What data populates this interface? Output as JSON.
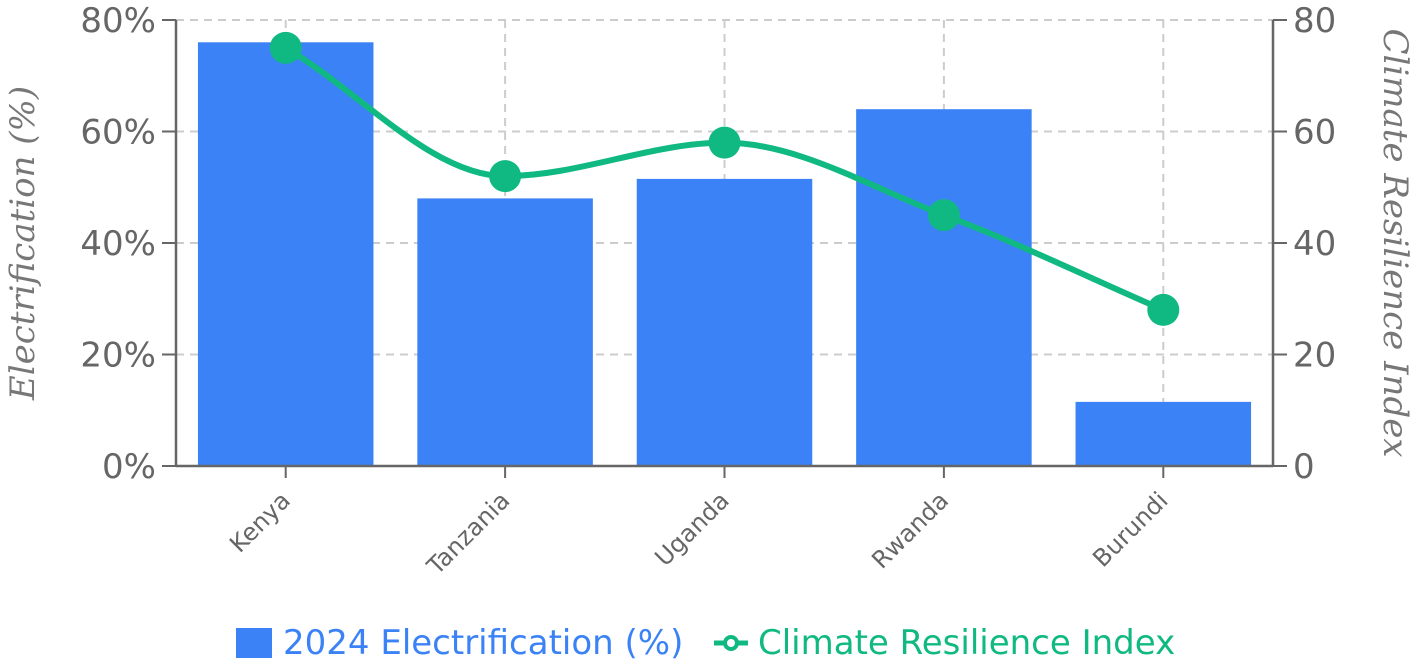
{
  "chart_data": {
    "type": "bar",
    "categories": [
      "Kenya",
      "Tanzania",
      "Uganda",
      "Rwanda",
      "Burundi"
    ],
    "series": [
      {
        "name": "2024 Electrification (%)",
        "type": "bar",
        "axis": "left",
        "color": "#3b82f6",
        "values": [
          76,
          48,
          51.5,
          64,
          11.5
        ]
      },
      {
        "name": "Climate Resilience Index",
        "type": "line",
        "axis": "right",
        "color": "#10b981",
        "smooth": true,
        "values": [
          75,
          52,
          58,
          45,
          28
        ]
      }
    ],
    "y_left": {
      "label": "Electrification (%)",
      "range": [
        0,
        80
      ],
      "ticks": [
        0,
        20,
        40,
        60,
        80
      ],
      "tick_labels": [
        "0%",
        "20%",
        "40%",
        "60%",
        "80%"
      ]
    },
    "y_right": {
      "label": "Climate Resilience Index",
      "range": [
        0,
        80
      ],
      "ticks": [
        0,
        20,
        40,
        60,
        80
      ],
      "tick_labels": [
        "0",
        "20",
        "40",
        "60",
        "80"
      ]
    },
    "grid": true,
    "legend": {
      "position": "bottom",
      "entries": [
        "2024 Electrification (%)",
        "Climate Resilience Index"
      ]
    }
  }
}
